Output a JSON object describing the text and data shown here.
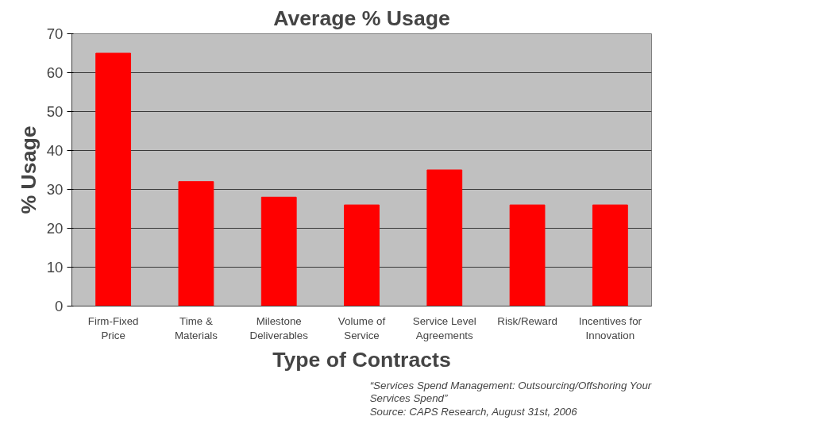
{
  "chart_data": {
    "type": "bar",
    "title": "Average % Usage",
    "xlabel": "Type of Contracts",
    "ylabel": "% Usage",
    "categories": [
      "Firm-Fixed\nPrice",
      "Time &\nMaterials",
      "Milestone\nDeliverables",
      "Volume of\nService",
      "Service Level\nAgreements",
      "Risk/Reward",
      "Incentives for\nInnovation"
    ],
    "values": [
      65,
      32,
      28,
      26,
      35,
      26,
      26
    ],
    "color": "#ff0000",
    "ylim": [
      0,
      70
    ],
    "yticks": [
      0,
      10,
      20,
      30,
      40,
      50,
      60,
      70
    ],
    "grid": "y",
    "annotations": [
      "“Services Spend Management: Outsourcing/Offshoring Your\nServices Spend”\nSource: CAPS Research, August 31st, 2006"
    ]
  }
}
